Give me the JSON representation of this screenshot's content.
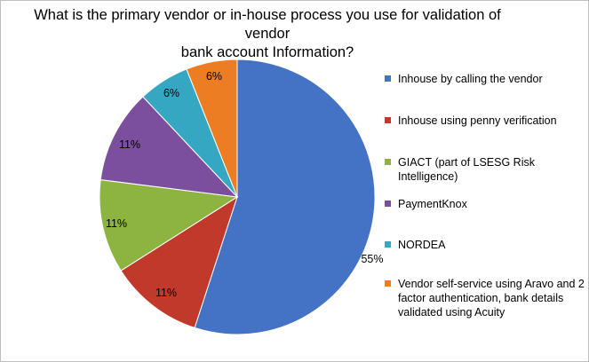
{
  "chart_data": {
    "type": "pie",
    "title_lines": [
      "What is the primary vendor or in-house process you use for validation of vendor",
      "bank account Information?"
    ],
    "slices": [
      {
        "name": "Inhouse by calling the vendor",
        "value": 55,
        "label": "55%",
        "color": "#4472C4"
      },
      {
        "name": "Inhouse using penny verification",
        "value": 11,
        "label": "11%",
        "color": "#C0392B"
      },
      {
        "name": "GIACT (part of LSESG Risk Intelligence)",
        "value": 11,
        "label": "11%",
        "color": "#8DB340"
      },
      {
        "name": "PaymentKnox",
        "value": 11,
        "label": "11%",
        "color": "#7B4F9E"
      },
      {
        "name": "NORDEA",
        "value": 6,
        "label": "6%",
        "color": "#35A7C3"
      },
      {
        "name": "Vendor self-service using Aravo and 2 factor authentication, bank details validated using Acuity",
        "value": 6,
        "label": "6%",
        "color": "#ED7D23"
      }
    ],
    "legend_position": "right"
  }
}
